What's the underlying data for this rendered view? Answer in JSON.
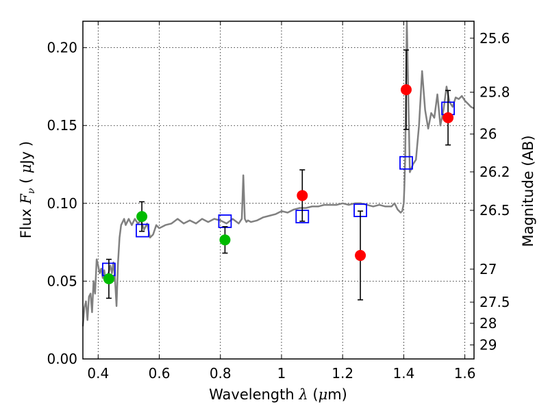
{
  "chart_data": {
    "type": "scatter",
    "xlabel": "Wavelength",
    "xlabel_symbol": "λ",
    "xlabel_unit_open": " (",
    "xlabel_unit_symbol": "μ",
    "xlabel_unit_close": "m)",
    "ylabel": "Flux",
    "ylabel_symbol": "F",
    "ylabel_subscript": "ν",
    "ylabel_unit_open": " ( ",
    "ylabel_unit_symbol": "μ",
    "ylabel_unit_close": "Jy )",
    "y2label": "Magnitude (AB)",
    "xlim": [
      0.35,
      1.63
    ],
    "ylim": [
      0.0,
      0.217
    ],
    "grid": true,
    "x_ticks": [
      {
        "value": 0.4,
        "label": "0.4"
      },
      {
        "value": 0.6,
        "label": "0.6"
      },
      {
        "value": 0.8,
        "label": "0.8"
      },
      {
        "value": 1.0,
        "label": "1"
      },
      {
        "value": 1.2,
        "label": "1.2"
      },
      {
        "value": 1.4,
        "label": "1.4"
      },
      {
        "value": 1.6,
        "label": "1.6"
      }
    ],
    "y_ticks": [
      {
        "value": 0.0,
        "label": "0.00"
      },
      {
        "value": 0.05,
        "label": "0.05"
      },
      {
        "value": 0.1,
        "label": "0.10"
      },
      {
        "value": 0.15,
        "label": "0.15"
      },
      {
        "value": 0.2,
        "label": "0.20"
      }
    ],
    "y2_ticks": [
      {
        "flux": 0.2061,
        "label": "25.6"
      },
      {
        "flux": 0.1714,
        "label": "25.8"
      },
      {
        "flux": 0.1445,
        "label": "26"
      },
      {
        "flux": 0.1202,
        "label": "26.2"
      },
      {
        "flux": 0.0955,
        "label": "26.5"
      },
      {
        "flux": 0.0577,
        "label": "27"
      },
      {
        "flux": 0.0365,
        "label": "27.5"
      },
      {
        "flux": 0.0229,
        "label": "28"
      },
      {
        "flux": 0.009,
        "label": "29"
      }
    ],
    "series": [
      {
        "kind": "model-spectrum",
        "color": "#808080",
        "x": [
          0.35,
          0.355,
          0.36,
          0.365,
          0.37,
          0.375,
          0.38,
          0.385,
          0.39,
          0.395,
          0.4,
          0.405,
          0.41,
          0.415,
          0.42,
          0.425,
          0.43,
          0.435,
          0.44,
          0.445,
          0.45,
          0.455,
          0.46,
          0.465,
          0.47,
          0.475,
          0.48,
          0.485,
          0.49,
          0.495,
          0.5,
          0.51,
          0.52,
          0.53,
          0.54,
          0.55,
          0.56,
          0.57,
          0.58,
          0.59,
          0.6,
          0.62,
          0.64,
          0.66,
          0.68,
          0.7,
          0.72,
          0.74,
          0.76,
          0.78,
          0.8,
          0.82,
          0.84,
          0.86,
          0.87,
          0.875,
          0.88,
          0.885,
          0.89,
          0.9,
          0.92,
          0.94,
          0.96,
          0.98,
          1.0,
          1.02,
          1.04,
          1.06,
          1.08,
          1.1,
          1.12,
          1.14,
          1.16,
          1.18,
          1.2,
          1.22,
          1.24,
          1.26,
          1.28,
          1.3,
          1.32,
          1.34,
          1.36,
          1.37,
          1.38,
          1.39,
          1.395,
          1.4,
          1.402,
          1.405,
          1.41,
          1.42,
          1.43,
          1.44,
          1.45,
          1.46,
          1.47,
          1.48,
          1.49,
          1.5,
          1.51,
          1.52,
          1.53,
          1.54,
          1.55,
          1.56,
          1.57,
          1.58,
          1.59,
          1.6,
          1.61,
          1.62,
          1.63
        ],
        "y": [
          0.021,
          0.033,
          0.037,
          0.025,
          0.04,
          0.042,
          0.03,
          0.05,
          0.042,
          0.064,
          0.06,
          0.055,
          0.058,
          0.052,
          0.057,
          0.05,
          0.053,
          0.056,
          0.06,
          0.055,
          0.062,
          0.052,
          0.034,
          0.062,
          0.078,
          0.086,
          0.088,
          0.09,
          0.086,
          0.088,
          0.09,
          0.086,
          0.09,
          0.087,
          0.089,
          0.083,
          0.087,
          0.078,
          0.08,
          0.086,
          0.084,
          0.086,
          0.087,
          0.09,
          0.087,
          0.089,
          0.087,
          0.09,
          0.088,
          0.09,
          0.089,
          0.087,
          0.09,
          0.087,
          0.09,
          0.118,
          0.09,
          0.088,
          0.089,
          0.088,
          0.089,
          0.091,
          0.092,
          0.093,
          0.095,
          0.094,
          0.096,
          0.097,
          0.097,
          0.098,
          0.098,
          0.099,
          0.099,
          0.099,
          0.1,
          0.099,
          0.1,
          0.1,
          0.099,
          0.098,
          0.099,
          0.098,
          0.098,
          0.1,
          0.096,
          0.094,
          0.095,
          0.1,
          0.11,
          0.13,
          0.217,
          0.12,
          0.125,
          0.128,
          0.15,
          0.185,
          0.16,
          0.148,
          0.158,
          0.155,
          0.17,
          0.15,
          0.16,
          0.175,
          0.165,
          0.162,
          0.168,
          0.167,
          0.169,
          0.166,
          0.164,
          0.162,
          0.161
        ]
      },
      {
        "kind": "model-bandpass",
        "marker": "open-square",
        "color": "#0000ff",
        "x": [
          0.435,
          0.545,
          0.815,
          1.068,
          1.258,
          1.408,
          1.545
        ],
        "y": [
          0.0575,
          0.0825,
          0.0885,
          0.0915,
          0.0955,
          0.126,
          0.161
        ]
      },
      {
        "kind": "observed",
        "marker": "filled-circle",
        "color": "#00bb00",
        "x": [
          0.435,
          0.543,
          0.815
        ],
        "y": [
          0.0515,
          0.0915,
          0.0765
        ],
        "err": [
          0.0125,
          0.0095,
          0.0085
        ]
      },
      {
        "kind": "observed",
        "marker": "filled-circle",
        "color": "#ff0000",
        "x": [
          1.068,
          1.258,
          1.408,
          1.545
        ],
        "y": [
          0.105,
          0.0665,
          0.173,
          0.155
        ],
        "err": [
          0.0165,
          0.0285,
          0.0255,
          0.0175
        ]
      }
    ]
  }
}
